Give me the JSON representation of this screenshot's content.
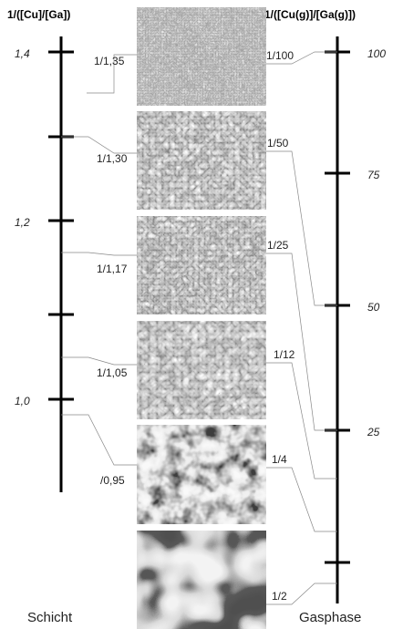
{
  "left_axis": {
    "title": "1/([Cu]/[Ga])",
    "ticks": [
      "1,4",
      "1,2",
      "1,0"
    ],
    "caption": "Schicht"
  },
  "right_axis": {
    "title": "1/([Cu(g)]/[Ga(g)])",
    "ticks": [
      "100",
      "75",
      "50",
      "25"
    ],
    "caption": "Gasphase"
  },
  "samples": [
    {
      "layer_ratio": "1/1,35",
      "gas_ratio": "1/100"
    },
    {
      "layer_ratio": "1/1,30",
      "gas_ratio": "1/50"
    },
    {
      "layer_ratio": "1/1,17",
      "gas_ratio": "1/25"
    },
    {
      "layer_ratio": "1/1,05",
      "gas_ratio": "1/12"
    },
    {
      "layer_ratio": "/0,95",
      "gas_ratio": "1/4"
    },
    {
      "gas_ratio": "1/2"
    }
  ]
}
